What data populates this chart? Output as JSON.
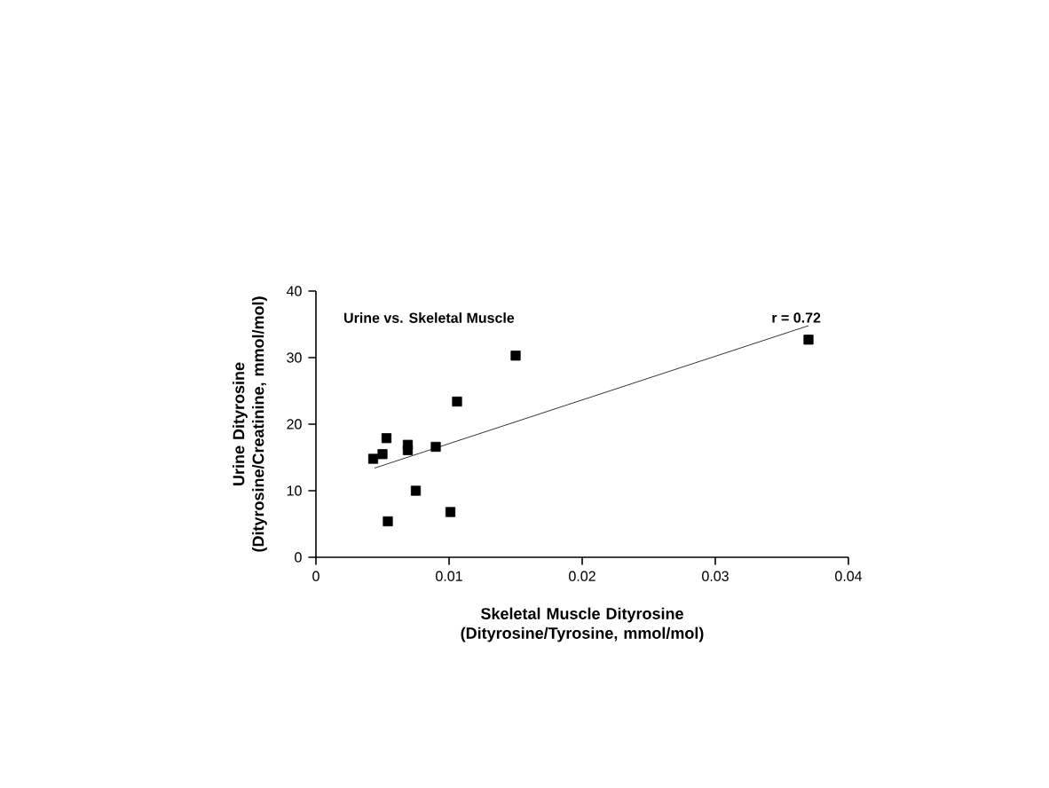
{
  "chart_data": {
    "type": "scatter",
    "xlabel": "Skeletal Muscle Dityrosine\n(Dityrosine/Tyrosine, mmol/mol)",
    "ylabel": "Urine Dityrosine\n(Dityrosine/Creatinine, mmol/mol)",
    "annotations": [
      "Urine vs. Skeletal Muscle",
      "r = 0.72"
    ],
    "series": [
      {
        "color": "#000000",
        "marker": "square",
        "x": [
          0.0043,
          0.005,
          0.0053,
          0.0069,
          0.0069,
          0.009,
          0.0106,
          0.0075,
          0.0101,
          0.0054,
          0.015,
          0.037
        ],
        "values": [
          14.8,
          15.5,
          17.9,
          16.9,
          16.1,
          16.6,
          23.4,
          10.0,
          6.8,
          5.4,
          30.3,
          32.7
        ]
      },
      {
        "type": "line",
        "color": "#000000",
        "line_style": "solid",
        "x": [
          0.0044,
          0.037
        ],
        "values": [
          13.4,
          34.8
        ]
      }
    ],
    "xlim": [
      0,
      0.04
    ],
    "ylim": [
      0,
      40
    ],
    "xticks": [
      0,
      0.01,
      0.02,
      0.03,
      0.04
    ],
    "yticks": [
      0,
      10,
      20,
      30,
      40
    ]
  }
}
